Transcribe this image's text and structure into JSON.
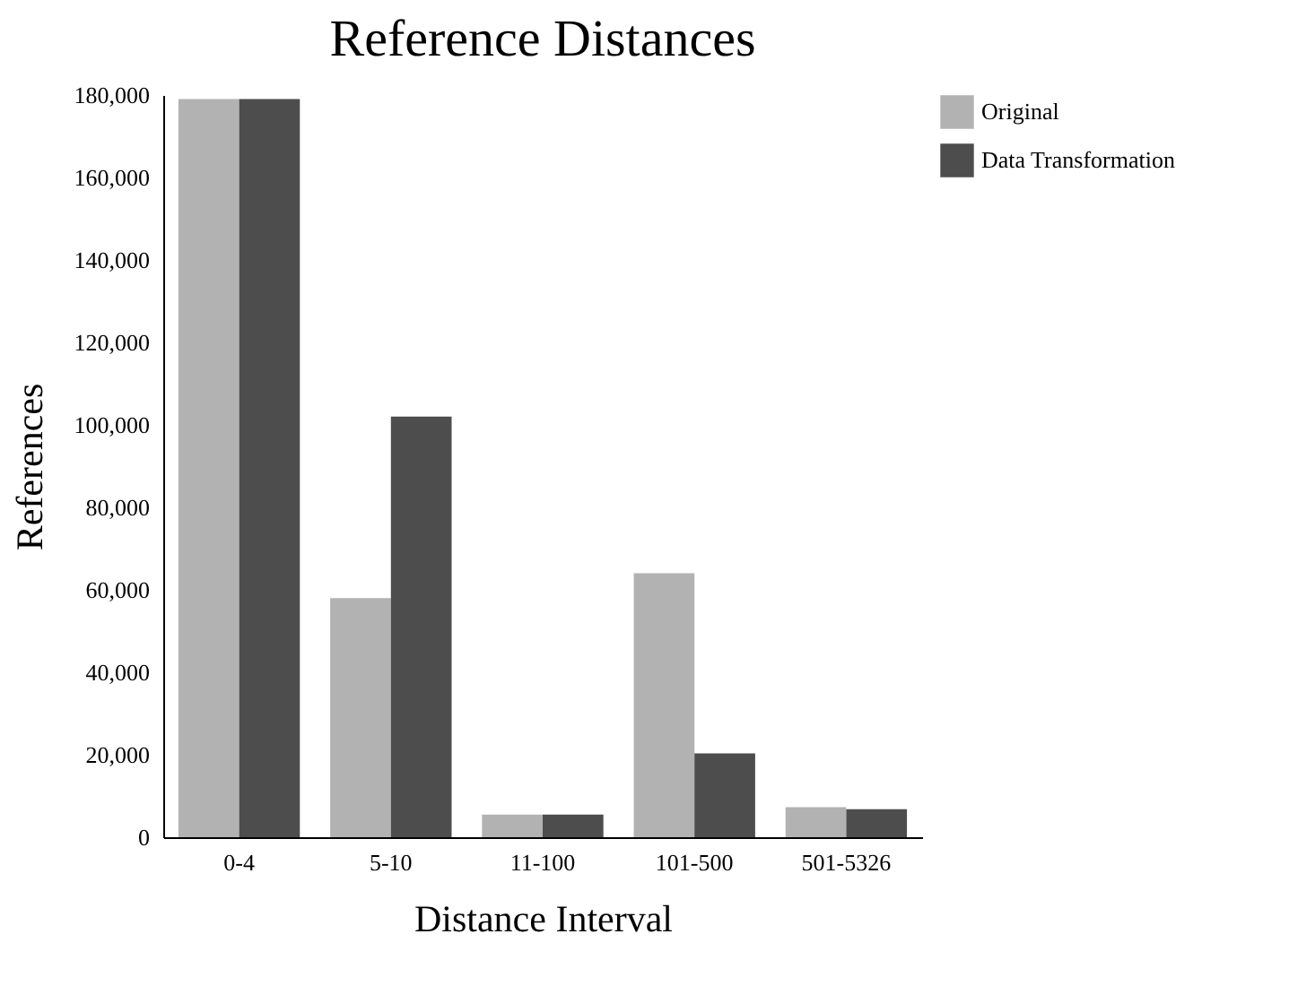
{
  "chart_data": {
    "type": "bar",
    "title": "Reference Distances",
    "xlabel": "Distance Interval",
    "ylabel": "References",
    "categories": [
      "0-4",
      "5-10",
      "11-100",
      "101-500",
      "501-5326"
    ],
    "series": [
      {
        "name": "Original",
        "color": "#b2b2b2",
        "values": [
          179000,
          58000,
          5500,
          64000,
          7300
        ]
      },
      {
        "name": "Data Transformation",
        "color": "#4d4d4d",
        "values": [
          179000,
          102000,
          5500,
          20300,
          6800
        ]
      }
    ],
    "ylim": [
      0,
      180000
    ],
    "yticks": [
      0,
      {
        "value": 20000,
        "label": "20,000"
      },
      {
        "value": 40000,
        "label": "40,000"
      },
      {
        "value": 60000,
        "label": "60,000"
      },
      {
        "value": 80000,
        "label": "80,000"
      },
      {
        "value": 100000,
        "label": "100,000"
      },
      {
        "value": 120000,
        "label": "120,000"
      },
      {
        "value": 140000,
        "label": "140,000"
      },
      {
        "value": 160000,
        "label": "160,000"
      },
      {
        "value": 180000,
        "label": "180,000"
      }
    ],
    "grid": false,
    "legend": "top right"
  }
}
